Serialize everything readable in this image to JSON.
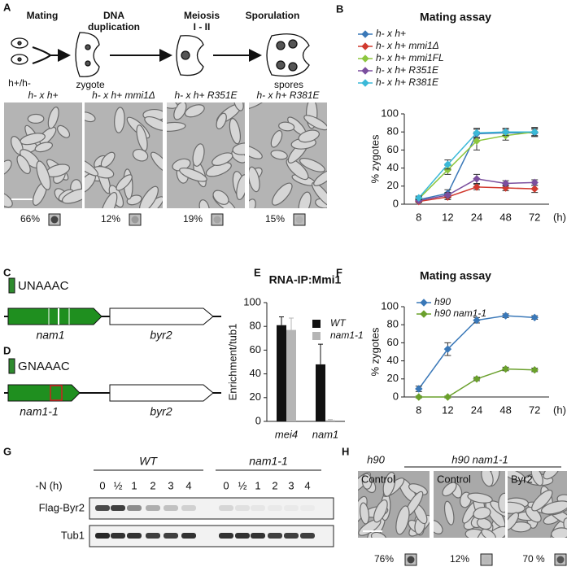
{
  "panel_a": {
    "letter": "A",
    "steps": [
      {
        "lines": [
          "Mating"
        ]
      },
      {
        "lines": [
          "DNA",
          "duplication"
        ]
      },
      {
        "lines": [
          "Meiosis",
          "I - II"
        ]
      },
      {
        "lines": [
          "Sporulation"
        ]
      }
    ],
    "cell_labels": [
      "h+/h-",
      "zygote",
      "spores"
    ],
    "micrographs": [
      {
        "title": "h- x h+",
        "percent": "66%"
      },
      {
        "title": "h- x h+ mmi1Δ",
        "percent": "12%"
      },
      {
        "title": "h- x h+ R351E",
        "percent": "19%"
      },
      {
        "title": "h- x h+ R381E",
        "percent": "15%"
      }
    ]
  },
  "chart_data": [
    {
      "type": "line",
      "panel": "B",
      "title": "Mating assay",
      "y_label": "% zygotes",
      "x_unit": "(h)",
      "categories": [
        "8",
        "12",
        "24",
        "48",
        "72"
      ],
      "ylim": [
        0,
        100
      ],
      "yticks": [
        0,
        20,
        40,
        60,
        80,
        100
      ],
      "series": [
        {
          "name": "h- x h+",
          "color": "#3a78b8",
          "values": [
            5,
            12,
            78,
            79,
            79
          ],
          "errors": [
            2,
            4,
            5,
            4,
            4
          ]
        },
        {
          "name": "h- x h+ mmi1Δ",
          "color": "#d13a2f",
          "values": [
            3,
            8,
            19,
            18,
            17
          ],
          "errors": [
            1,
            3,
            3,
            3,
            4
          ]
        },
        {
          "name": "h- x h+ mmi1FL",
          "color": "#8dc63f",
          "values": [
            6,
            38,
            70,
            76,
            80
          ],
          "errors": [
            2,
            5,
            10,
            5,
            5
          ]
        },
        {
          "name": "h- x h+ R351E",
          "color": "#7b4f9e",
          "values": [
            4,
            10,
            28,
            23,
            24
          ],
          "errors": [
            2,
            3,
            5,
            3,
            3
          ]
        },
        {
          "name": "h- x h+ R381E",
          "color": "#3bb9d8",
          "values": [
            7,
            44,
            79,
            80,
            80
          ],
          "errors": [
            2,
            5,
            5,
            4,
            4
          ]
        }
      ]
    },
    {
      "type": "bar",
      "panel": "E",
      "title": "RNA-IP:Mmi1",
      "y_label": "Enrichment/tub1",
      "categories": [
        "mei4",
        "nam1"
      ],
      "ylim": [
        0,
        100
      ],
      "yticks": [
        0,
        20,
        40,
        60,
        80,
        100
      ],
      "series": [
        {
          "name": "WT",
          "color": "#111111",
          "values": [
            81,
            48
          ],
          "errors": [
            7,
            17
          ]
        },
        {
          "name": "nam1-1",
          "color": "#b5b5b5",
          "values": [
            77,
            1
          ],
          "errors": [
            10,
            0.5
          ]
        }
      ]
    },
    {
      "type": "line",
      "panel": "F",
      "title": "Mating assay",
      "y_label": "% zygotes",
      "x_unit": "(h)",
      "categories": [
        "8",
        "12",
        "24",
        "48",
        "72"
      ],
      "ylim": [
        0,
        100
      ],
      "yticks": [
        0,
        20,
        40,
        60,
        80,
        100
      ],
      "series": [
        {
          "name": "h90",
          "color": "#3a78b8",
          "values": [
            9,
            53,
            85,
            90,
            88
          ],
          "errors": [
            3,
            7,
            3,
            2,
            2
          ]
        },
        {
          "name": "h90 nam1-1",
          "color": "#6aa02c",
          "values": [
            0,
            0,
            20,
            31,
            30
          ],
          "errors": [
            1,
            1,
            2,
            2,
            2
          ]
        }
      ]
    }
  ],
  "panel_c": {
    "letter": "C",
    "motif": "UNAAAC",
    "genes": [
      "nam1",
      "byr2"
    ]
  },
  "panel_d": {
    "letter": "D",
    "motif_mutation": "G",
    "motif_rest": "NAAAC",
    "genes": [
      "nam1-1",
      "byr2"
    ]
  },
  "panel_g": {
    "letter": "G",
    "strains": [
      "WT",
      "nam1-1"
    ],
    "time_label": "-N (h)",
    "timepoints": [
      "0",
      "½",
      "1",
      "2",
      "3",
      "4"
    ],
    "rows": [
      "Flag-Byr2",
      "Tub1"
    ]
  },
  "panel_h": {
    "letter": "H",
    "strains": [
      "h90",
      "h90 nam1-1"
    ],
    "images": [
      {
        "label": "Control",
        "percent": "76%"
      },
      {
        "label": "Control",
        "percent": "12%"
      },
      {
        "label": "Byr2",
        "percent": "70 %"
      }
    ]
  }
}
